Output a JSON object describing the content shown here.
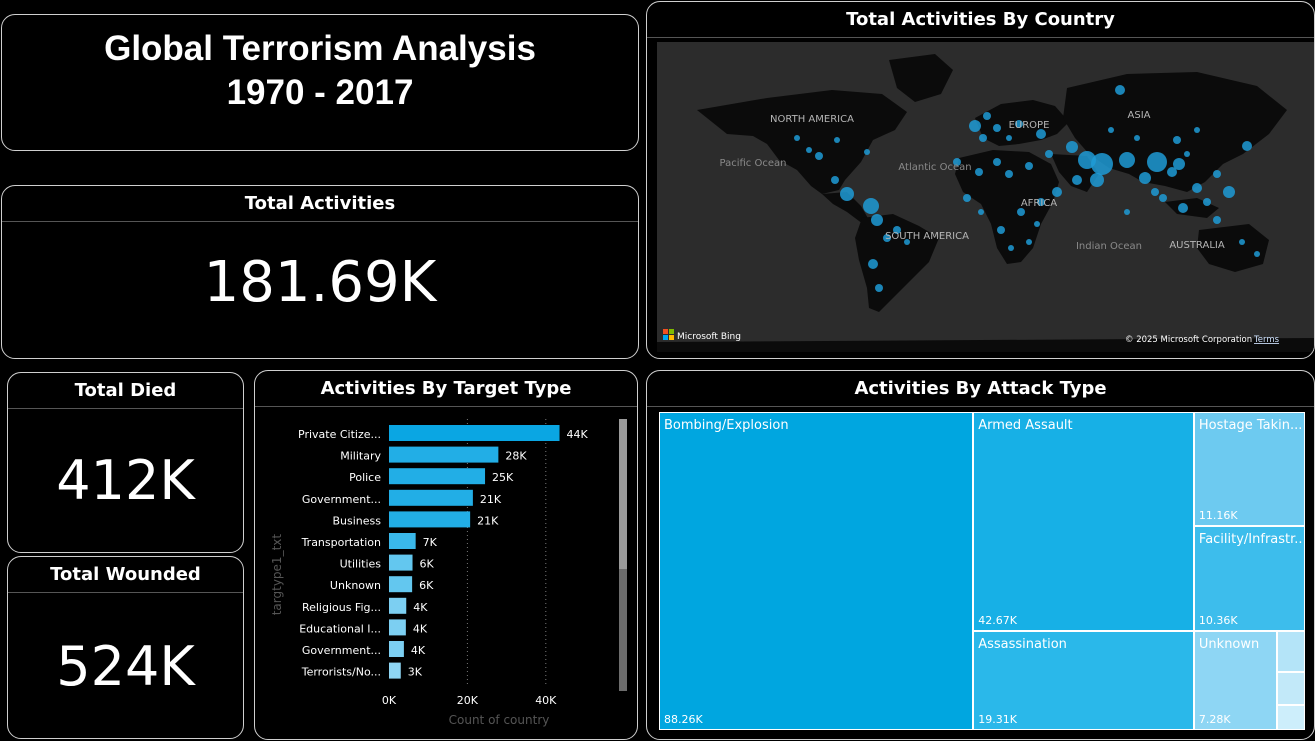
{
  "header": {
    "title_line1": "Global Terrorism Analysis",
    "title_line2": "1970 - 2017"
  },
  "kpis": {
    "total_activities": {
      "label": "Total Activities",
      "value": "181.69K"
    },
    "total_died": {
      "label": "Total Died",
      "value": "412K"
    },
    "total_wounded": {
      "label": "Total Wounded",
      "value": "524K"
    }
  },
  "map": {
    "title": "Total Activities By Country",
    "continent_labels": [
      "NORTH AMERICA",
      "EUROPE",
      "ASIA",
      "AFRICA",
      "SOUTH AMERICA",
      "AUSTRALIA"
    ],
    "ocean_labels": [
      "Pacific Ocean",
      "Atlantic Ocean",
      "Indian Ocean"
    ],
    "attribution_brand": "Microsoft Bing",
    "attribution_copyright": "© 2025 Microsoft Corporation",
    "attribution_terms": "Terms",
    "bubble_color": "#1f9bd6"
  },
  "target_chart": {
    "title": "Activities By Target Type",
    "ylabel": "targtype1_txt",
    "xlabel": "Count of country",
    "bar_color": "#1cb0e6"
  },
  "attack_chart": {
    "title": "Activities By Attack Type",
    "base_color": "#009fdb"
  },
  "chart_data": [
    {
      "type": "bar",
      "orientation": "horizontal",
      "title": "Activities By Target Type",
      "xlabel": "Count of country",
      "ylabel": "targtype1_txt",
      "xlim": [
        0,
        50000
      ],
      "xticks": [
        "0K",
        "20K",
        "40K"
      ],
      "xtick_values": [
        0,
        20000,
        40000
      ],
      "categories": [
        "Private Citize...",
        "Military",
        "Police",
        "Government...",
        "Business",
        "Transportation",
        "Utilities",
        "Unknown",
        "Religious Fig...",
        "Educational I...",
        "Government...",
        "Terrorists/No..."
      ],
      "values": [
        43500,
        27900,
        24500,
        21400,
        20700,
        6800,
        6000,
        5900,
        4400,
        4300,
        3800,
        3000
      ],
      "data_labels": [
        "44K",
        "28K",
        "25K",
        "21K",
        "21K",
        "7K",
        "6K",
        "6K",
        "4K",
        "4K",
        "4K",
        "3K"
      ],
      "grid": "vertical dotted"
    },
    {
      "type": "treemap",
      "title": "Activities By Attack Type",
      "categories": [
        "Bombing/Explosion",
        "Armed Assault",
        "Assassination",
        "Hostage Takin...",
        "Facility/Infrastr...",
        "Unknown"
      ],
      "values": [
        88260,
        42670,
        19310,
        11160,
        10360,
        7280
      ],
      "data_labels": [
        "88.26K",
        "42.67K",
        "19.31K",
        "11.16K",
        "10.36K",
        "7.28K"
      ],
      "small_unlabeled_values": [
        1000,
        800,
        600
      ]
    }
  ]
}
